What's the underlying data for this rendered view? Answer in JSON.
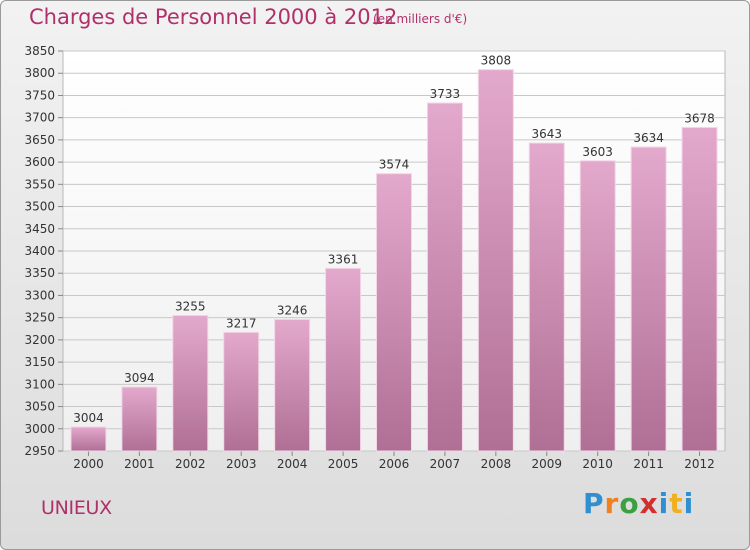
{
  "header": {
    "title": "Charges de Personnel 2000 à 2012",
    "subtitle": "(en milliers d'€)"
  },
  "footer": {
    "commune": "UNIEUX",
    "logo_letters": [
      "P",
      "r",
      "o",
      "x",
      "i",
      "t",
      "i"
    ]
  },
  "colors": {
    "accent": "#b0306a",
    "bar_top": "#e3a9cc",
    "bar_bottom": "#b06f95"
  },
  "chart_data": {
    "type": "bar",
    "title": "Charges de Personnel 2000 à 2012",
    "subtitle": "(en milliers d'€)",
    "categories": [
      "2000",
      "2001",
      "2002",
      "2003",
      "2004",
      "2005",
      "2006",
      "2007",
      "2008",
      "2009",
      "2010",
      "2011",
      "2012"
    ],
    "values": [
      3004,
      3094,
      3255,
      3217,
      3246,
      3361,
      3574,
      3733,
      3808,
      3643,
      3603,
      3634,
      3678
    ],
    "ylim": [
      2950,
      3850
    ],
    "yticks": [
      2950,
      3000,
      3050,
      3100,
      3150,
      3200,
      3250,
      3300,
      3350,
      3400,
      3450,
      3500,
      3550,
      3600,
      3650,
      3700,
      3750,
      3800,
      3850
    ],
    "grid": true,
    "xlabel": "",
    "ylabel": ""
  }
}
